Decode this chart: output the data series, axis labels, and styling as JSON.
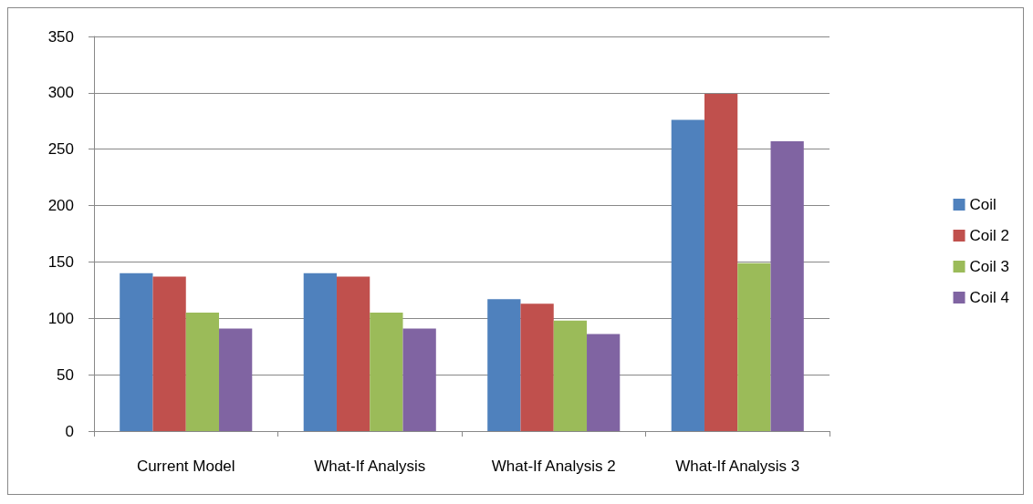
{
  "chart_data": {
    "type": "bar",
    "categories": [
      "Current Model",
      "What-If Analysis",
      "What-If Analysis 2",
      "What-If Analysis 3"
    ],
    "series": [
      {
        "name": "Coil",
        "color": "#4f81bd",
        "values": [
          140,
          140,
          117,
          276
        ]
      },
      {
        "name": "Coil 2",
        "color": "#c0504d",
        "values": [
          137,
          137,
          113,
          299
        ]
      },
      {
        "name": "Coil 3",
        "color": "#9bbb59",
        "values": [
          105,
          105,
          98,
          149
        ]
      },
      {
        "name": "Coil 4",
        "color": "#8064a2",
        "values": [
          91,
          91,
          86,
          257
        ]
      }
    ],
    "ylim": [
      0,
      350
    ],
    "yticks": [
      0,
      50,
      100,
      150,
      200,
      250,
      300,
      350
    ],
    "grid": "y",
    "legend": "right"
  }
}
